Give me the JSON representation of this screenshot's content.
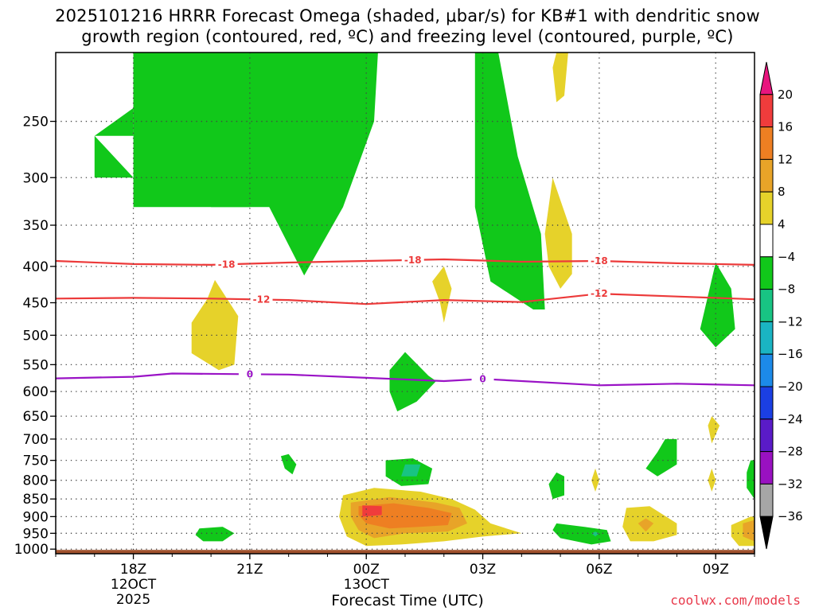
{
  "chart_data": {
    "type": "heatmap",
    "title": "2025101216 HRRR Forecast Omega (shaded, μbar/s) for KB#1 with dendritic snow",
    "subtitle": "growth region (contoured, red, ºC) and freezing level (contoured, purple, ºC)",
    "xlabel": "Forecast Time (UTC)",
    "ylabel": "",
    "x_ticks": [
      {
        "label": "18Z",
        "sub": [
          "12OCT",
          "2025"
        ],
        "hours": 2
      },
      {
        "label": "21Z",
        "sub": [],
        "hours": 5
      },
      {
        "label": "00Z",
        "sub": [
          "13OCT"
        ],
        "hours": 8
      },
      {
        "label": "03Z",
        "sub": [],
        "hours": 11
      },
      {
        "label": "06Z",
        "sub": [],
        "hours": 14
      },
      {
        "label": "09Z",
        "sub": [],
        "hours": 17
      }
    ],
    "xlim_hours": [
      0,
      18
    ],
    "y_ticks": [
      250,
      300,
      350,
      400,
      450,
      500,
      550,
      600,
      650,
      700,
      750,
      800,
      850,
      900,
      950,
      1000
    ],
    "ylim_hPa": [
      1015,
      200
    ],
    "y_scale": "log-pressure",
    "grid": true,
    "colorbar": {
      "levels": [
        "20",
        "16",
        "12",
        "8",
        "4",
        "−4",
        "−8",
        "−12",
        "−16",
        "−20",
        "−24",
        "−28",
        "−32",
        "−36"
      ],
      "colors": [
        "#e8157e",
        "#f03c3c",
        "#ee7f22",
        "#e8a428",
        "#e6d22a",
        "#ffffff",
        "#11c81a",
        "#18c483",
        "#1ab4c3",
        "#1c8ae8",
        "#1b3fe3",
        "#5a1bc8",
        "#9911c1",
        "#a6a6a6",
        "#000000"
      ]
    },
    "contours": [
      {
        "name": "-18",
        "color": "#ec3a3a",
        "points": [
          [
            0,
            393
          ],
          [
            2,
            397
          ],
          [
            4,
            398
          ],
          [
            6,
            395
          ],
          [
            8,
            393
          ],
          [
            10,
            391
          ],
          [
            12,
            394
          ],
          [
            14,
            393
          ],
          [
            16,
            396
          ],
          [
            18,
            398
          ]
        ]
      },
      {
        "name": "-12",
        "color": "#ec3a3a",
        "points": [
          [
            0,
            444
          ],
          [
            2,
            443
          ],
          [
            4,
            444
          ],
          [
            6,
            446
          ],
          [
            8,
            452
          ],
          [
            10,
            446
          ],
          [
            12,
            449
          ],
          [
            14,
            437
          ],
          [
            16,
            441
          ],
          [
            18,
            445
          ]
        ]
      },
      {
        "name": "0",
        "color": "#9a13c6",
        "points": [
          [
            0,
            575
          ],
          [
            2,
            572
          ],
          [
            3,
            566
          ],
          [
            6,
            568
          ],
          [
            8,
            574
          ],
          [
            10,
            580
          ],
          [
            11,
            576
          ],
          [
            14,
            588
          ],
          [
            16,
            585
          ],
          [
            18,
            588
          ]
        ]
      }
    ],
    "omega_regions": [
      {
        "value": -8,
        "points": [
          [
            1,
            262
          ],
          [
            2,
            262
          ],
          [
            2.0,
            200
          ],
          [
            4.0,
            200
          ],
          [
            4.0,
            330
          ],
          [
            5.0,
            330
          ],
          [
            5.5,
            330
          ],
          [
            6.4,
            412
          ],
          [
            7.4,
            330
          ],
          [
            8.2,
            250
          ],
          [
            8.3,
            200
          ],
          [
            4.0,
            200
          ]
        ]
      },
      {
        "value": -8,
        "points": [
          [
            1,
            262
          ],
          [
            2,
            262
          ],
          [
            2.0,
            330
          ],
          [
            5.0,
            330
          ],
          [
            5.0,
            200
          ],
          [
            2.0,
            200
          ],
          [
            2.0,
            262
          ],
          [
            1.0,
            262
          ],
          [
            1.0,
            300
          ],
          [
            2.0,
            300
          ]
        ]
      },
      {
        "value": -8,
        "points": [
          [
            10.8,
            200
          ],
          [
            11.4,
            200
          ],
          [
            11.9,
            280
          ],
          [
            12.5,
            360
          ],
          [
            12.6,
            460
          ],
          [
            12.3,
            460
          ],
          [
            11.2,
            420
          ],
          [
            10.8,
            330
          ],
          [
            10.8,
            200
          ]
        ]
      },
      {
        "value": -8,
        "points": [
          [
            17.0,
            395
          ],
          [
            17.4,
            430
          ],
          [
            17.5,
            490
          ],
          [
            17.0,
            520
          ],
          [
            16.6,
            490
          ],
          [
            16.8,
            440
          ]
        ]
      },
      {
        "value": -8,
        "points": [
          [
            9.0,
            528
          ],
          [
            9.6,
            570
          ],
          [
            9.8,
            580
          ],
          [
            9.3,
            620
          ],
          [
            8.8,
            640
          ],
          [
            8.6,
            600
          ],
          [
            8.6,
            560
          ]
        ]
      },
      {
        "value": -8,
        "points": [
          [
            6.0,
            735
          ],
          [
            6.2,
            760
          ],
          [
            6.1,
            785
          ],
          [
            5.9,
            770
          ],
          [
            5.8,
            740
          ]
        ]
      },
      {
        "value": -8,
        "points": [
          [
            8.5,
            750
          ],
          [
            9.2,
            745
          ],
          [
            9.7,
            770
          ],
          [
            9.6,
            810
          ],
          [
            8.9,
            815
          ],
          [
            8.5,
            790
          ]
        ]
      },
      {
        "value": -8,
        "points": [
          [
            3.7,
            935
          ],
          [
            4.3,
            930
          ],
          [
            4.6,
            950
          ],
          [
            4.3,
            975
          ],
          [
            3.8,
            975
          ],
          [
            3.6,
            955
          ]
        ]
      },
      {
        "value": -8,
        "points": [
          [
            12.9,
            780
          ],
          [
            13.1,
            790
          ],
          [
            13.1,
            840
          ],
          [
            12.8,
            850
          ],
          [
            12.7,
            810
          ]
        ]
      },
      {
        "value": -8,
        "points": [
          [
            12.9,
            920
          ],
          [
            13.6,
            930
          ],
          [
            14.2,
            940
          ],
          [
            14.3,
            975
          ],
          [
            13.8,
            985
          ],
          [
            13.0,
            965
          ],
          [
            12.8,
            940
          ]
        ]
      },
      {
        "value": -8,
        "points": [
          [
            15.7,
            700
          ],
          [
            16.0,
            700
          ],
          [
            16.0,
            760
          ],
          [
            15.5,
            790
          ],
          [
            15.2,
            770
          ],
          [
            15.5,
            730
          ]
        ]
      },
      {
        "value": -8,
        "points": [
          [
            17.9,
            750
          ],
          [
            18.0,
            750
          ],
          [
            18.0,
            850
          ],
          [
            17.8,
            820
          ],
          [
            17.8,
            780
          ]
        ]
      },
      {
        "value": -12,
        "points": [
          [
            9.0,
            760
          ],
          [
            9.4,
            760
          ],
          [
            9.3,
            790
          ],
          [
            8.9,
            790
          ]
        ]
      },
      {
        "value": 4,
        "points": [
          [
            12.9,
            200
          ],
          [
            13.2,
            200
          ],
          [
            13.1,
            230
          ],
          [
            12.9,
            235
          ],
          [
            12.8,
            210
          ]
        ]
      },
      {
        "value": 4,
        "points": [
          [
            12.8,
            300
          ],
          [
            13.3,
            360
          ],
          [
            13.3,
            410
          ],
          [
            13.0,
            430
          ],
          [
            12.7,
            400
          ],
          [
            12.6,
            360
          ]
        ]
      },
      {
        "value": 4,
        "points": [
          [
            10.0,
            400
          ],
          [
            10.2,
            430
          ],
          [
            10.0,
            480
          ],
          [
            9.9,
            450
          ],
          [
            9.7,
            420
          ]
        ]
      },
      {
        "value": 4,
        "points": [
          [
            4.1,
            418
          ],
          [
            4.7,
            470
          ],
          [
            4.6,
            550
          ],
          [
            4.2,
            560
          ],
          [
            3.5,
            530
          ],
          [
            3.5,
            480
          ],
          [
            3.9,
            445
          ]
        ]
      },
      {
        "value": 4,
        "points": [
          [
            16.9,
            650
          ],
          [
            17.1,
            670
          ],
          [
            16.9,
            710
          ],
          [
            16.8,
            670
          ]
        ]
      },
      {
        "value": 4,
        "points": [
          [
            13.9,
            770
          ],
          [
            14.0,
            800
          ],
          [
            13.9,
            830
          ],
          [
            13.8,
            800
          ]
        ]
      },
      {
        "value": 4,
        "points": [
          [
            16.9,
            770
          ],
          [
            17.0,
            800
          ],
          [
            16.9,
            830
          ],
          [
            16.8,
            800
          ]
        ]
      },
      {
        "value": 4,
        "points": [
          [
            7.4,
            840
          ],
          [
            8.2,
            820
          ],
          [
            9.4,
            830
          ],
          [
            10.2,
            850
          ],
          [
            10.8,
            880
          ],
          [
            11.2,
            920
          ],
          [
            12.0,
            950
          ],
          [
            11.0,
            960
          ],
          [
            10.0,
            975
          ],
          [
            8.9,
            985
          ],
          [
            8.0,
            990
          ],
          [
            7.5,
            960
          ],
          [
            7.3,
            900
          ]
        ]
      },
      {
        "value": 4,
        "points": [
          [
            14.7,
            875
          ],
          [
            15.3,
            870
          ],
          [
            16.0,
            920
          ],
          [
            16.0,
            955
          ],
          [
            15.4,
            975
          ],
          [
            14.8,
            975
          ],
          [
            14.6,
            930
          ]
        ]
      },
      {
        "value": 4,
        "points": [
          [
            17.4,
            925
          ],
          [
            17.9,
            900
          ],
          [
            18.0,
            900
          ],
          [
            18.0,
            990
          ],
          [
            17.6,
            990
          ],
          [
            17.4,
            960
          ]
        ]
      },
      {
        "value": 8,
        "points": [
          [
            7.6,
            860
          ],
          [
            8.6,
            845
          ],
          [
            9.8,
            860
          ],
          [
            10.4,
            875
          ],
          [
            10.6,
            920
          ],
          [
            10.1,
            945
          ],
          [
            9.0,
            950
          ],
          [
            8.2,
            965
          ],
          [
            7.8,
            940
          ],
          [
            7.6,
            900
          ]
        ]
      },
      {
        "value": 8,
        "points": [
          [
            15.2,
            905
          ],
          [
            15.4,
            920
          ],
          [
            15.2,
            945
          ],
          [
            15.0,
            920
          ]
        ]
      },
      {
        "value": 8,
        "points": [
          [
            17.7,
            920
          ],
          [
            18.0,
            910
          ],
          [
            18.0,
            975
          ],
          [
            17.7,
            960
          ]
        ]
      },
      {
        "value": 12,
        "points": [
          [
            7.8,
            870
          ],
          [
            8.7,
            862
          ],
          [
            9.6,
            875
          ],
          [
            10.2,
            890
          ],
          [
            10.1,
            925
          ],
          [
            9.4,
            930
          ],
          [
            8.6,
            935
          ],
          [
            8.0,
            920
          ],
          [
            7.8,
            895
          ]
        ]
      },
      {
        "value": 16,
        "points": [
          [
            7.9,
            868
          ],
          [
            8.4,
            870
          ],
          [
            8.4,
            895
          ],
          [
            7.9,
            900
          ]
        ]
      },
      {
        "value": -12,
        "points": [
          [
            13.9,
            945
          ],
          [
            14.0,
            950
          ],
          [
            13.9,
            960
          ],
          [
            13.8,
            950
          ]
        ]
      }
    ]
  },
  "credit": "coolwx.com/models"
}
